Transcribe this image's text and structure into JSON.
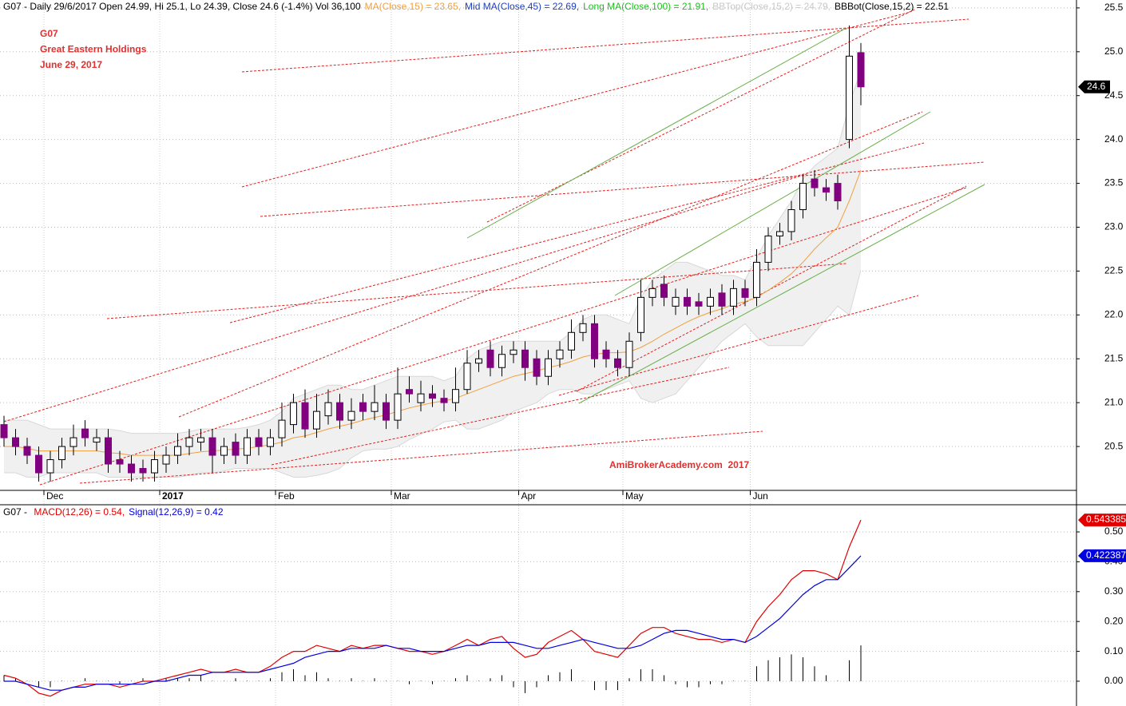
{
  "chart_data": [
    {
      "type": "candlestick",
      "header": [
        {
          "text": "G07 - Daily 29/6/2017 Open 24.99, Hi 25.1, Lo 24.39, Close 24.6 (-1.4%) Vol 36,100",
          "color": "#000000"
        },
        {
          "text": "MA(Close,15) = 23.65,",
          "color": "#f0a040"
        },
        {
          "text": "Mid MA(Close,45) = 22.69,",
          "color": "#2040c0"
        },
        {
          "text": "Long MA(Close,100) = 21.91,",
          "color": "#20c020"
        },
        {
          "text": "BBTop(Close,15,2) = 24.79,",
          "color": "#c8c8c8"
        },
        {
          "text": "BBBot(Close,15,2) = 22.51",
          "color": "#000000"
        }
      ],
      "annotation": [
        "G07",
        "Great Eastern Holdings",
        "June 29, 2017"
      ],
      "annotation_color": "#e03030",
      "watermark": "AmiBrokerAcademy.com  2017",
      "last_price_label": "24.6",
      "categories": [
        null,
        null,
        null,
        null,
        "Dec",
        null,
        null,
        null,
        null,
        null,
        null,
        null,
        null,
        null,
        "2017",
        null,
        null,
        null,
        null,
        null,
        null,
        null,
        null,
        null,
        "Feb",
        null,
        null,
        null,
        null,
        null,
        null,
        null,
        null,
        null,
        "Mar",
        null,
        null,
        null,
        null,
        null,
        null,
        null,
        null,
        null,
        null,
        "Apr",
        null,
        null,
        null,
        null,
        null,
        null,
        null,
        null,
        "May",
        null,
        null,
        null,
        null,
        null,
        null,
        null,
        null,
        null,
        null,
        "Jun",
        null,
        null,
        null,
        null,
        null,
        null,
        null,
        null,
        null
      ],
      "open": [
        20.75,
        20.6,
        20.5,
        20.4,
        20.2,
        20.35,
        20.5,
        20.7,
        20.55,
        20.6,
        20.35,
        20.3,
        20.25,
        20.2,
        20.3,
        20.4,
        20.5,
        20.55,
        20.6,
        20.4,
        20.55,
        20.4,
        20.6,
        20.5,
        20.6,
        20.75,
        21.0,
        20.7,
        20.85,
        21.0,
        20.8,
        21.0,
        20.9,
        21.0,
        20.8,
        21.15,
        21.0,
        21.1,
        21.05,
        21.0,
        21.15,
        21.45,
        21.6,
        21.4,
        21.55,
        21.6,
        21.5,
        21.3,
        21.5,
        21.6,
        21.8,
        21.9,
        21.6,
        21.5,
        21.4,
        21.8,
        22.2,
        22.35,
        22.1,
        22.2,
        22.15,
        22.1,
        22.25,
        22.1,
        22.3,
        22.2,
        22.6,
        22.9,
        22.95,
        23.2,
        23.55,
        23.45,
        23.5,
        24.0,
        24.99
      ],
      "high": [
        20.85,
        20.7,
        20.6,
        20.5,
        20.45,
        20.6,
        20.75,
        20.8,
        20.7,
        20.7,
        20.45,
        20.4,
        20.35,
        20.45,
        20.5,
        20.65,
        20.7,
        20.7,
        20.7,
        20.6,
        20.65,
        20.7,
        20.7,
        20.7,
        21.0,
        21.1,
        21.15,
        21.1,
        21.15,
        21.1,
        21.05,
        21.1,
        21.2,
        21.1,
        21.4,
        21.3,
        21.25,
        21.2,
        21.15,
        21.4,
        21.6,
        21.6,
        21.7,
        21.65,
        21.7,
        21.7,
        21.6,
        21.6,
        21.7,
        21.95,
        22.0,
        22.0,
        21.7,
        21.6,
        21.8,
        22.4,
        22.4,
        22.45,
        22.3,
        22.3,
        22.25,
        22.3,
        22.35,
        22.4,
        22.4,
        22.75,
        23.0,
        23.05,
        23.3,
        23.6,
        23.65,
        23.55,
        23.6,
        25.3,
        25.1
      ],
      "low": [
        20.5,
        20.4,
        20.3,
        20.1,
        20.1,
        20.25,
        20.4,
        20.5,
        20.45,
        20.2,
        20.2,
        20.1,
        20.1,
        20.1,
        20.2,
        20.3,
        20.4,
        20.45,
        20.2,
        20.3,
        20.3,
        20.3,
        20.4,
        20.4,
        20.5,
        20.65,
        20.6,
        20.6,
        20.75,
        20.7,
        20.7,
        20.8,
        20.8,
        20.7,
        20.7,
        21.0,
        20.9,
        20.95,
        20.9,
        20.9,
        21.1,
        21.35,
        21.3,
        21.3,
        21.45,
        21.25,
        21.2,
        21.2,
        21.4,
        21.5,
        21.7,
        21.4,
        21.4,
        21.3,
        21.3,
        21.7,
        22.1,
        22.1,
        22.0,
        22.0,
        22.0,
        22.0,
        22.0,
        22.0,
        22.1,
        22.1,
        22.5,
        22.8,
        22.85,
        23.1,
        23.35,
        23.3,
        23.2,
        23.9,
        24.39
      ],
      "close": [
        20.6,
        20.5,
        20.4,
        20.2,
        20.35,
        20.5,
        20.6,
        20.6,
        20.6,
        20.3,
        20.3,
        20.2,
        20.2,
        20.35,
        20.4,
        20.5,
        20.6,
        20.6,
        20.4,
        20.5,
        20.4,
        20.6,
        20.5,
        20.6,
        20.8,
        21.0,
        20.7,
        20.9,
        21.0,
        20.8,
        20.9,
        20.9,
        21.0,
        20.8,
        21.1,
        21.1,
        21.1,
        21.05,
        21.0,
        21.15,
        21.45,
        21.5,
        21.4,
        21.55,
        21.6,
        21.4,
        21.3,
        21.5,
        21.6,
        21.8,
        21.9,
        21.5,
        21.5,
        21.4,
        21.7,
        22.2,
        22.3,
        22.2,
        22.2,
        22.1,
        22.1,
        22.2,
        22.1,
        22.3,
        22.2,
        22.6,
        22.9,
        22.95,
        23.2,
        23.5,
        23.45,
        23.4,
        23.3,
        24.95,
        24.6
      ],
      "up_color": "#ffffff",
      "down_color": "#800080",
      "ma15": {
        "color": "#f0a040",
        "values": [
          20.5,
          20.5,
          20.48,
          20.45,
          20.45,
          20.45,
          20.45,
          20.45,
          20.45,
          20.43,
          20.42,
          20.4,
          20.4,
          20.4,
          20.4,
          20.4,
          20.42,
          20.44,
          20.45,
          20.46,
          20.47,
          20.48,
          20.5,
          20.52,
          20.55,
          20.6,
          20.62,
          20.66,
          20.7,
          20.73,
          20.76,
          20.8,
          20.83,
          20.86,
          20.9,
          20.94,
          20.97,
          21.0,
          21.02,
          21.05,
          21.1,
          21.15,
          21.2,
          21.25,
          21.3,
          21.33,
          21.36,
          21.4,
          21.43,
          21.47,
          21.52,
          21.55,
          21.57,
          21.57,
          21.58,
          21.63,
          21.7,
          21.78,
          21.85,
          21.92,
          21.98,
          22.03,
          22.07,
          22.12,
          22.15,
          22.2,
          22.28,
          22.37,
          22.47,
          22.6,
          22.75,
          22.88,
          23.0,
          23.3,
          23.65
        ]
      },
      "bb_top": {
        "color": "#d8d8d8",
        "values": [
          20.8,
          20.8,
          20.8,
          20.75,
          20.7,
          20.7,
          20.7,
          20.7,
          20.7,
          20.7,
          20.68,
          20.65,
          20.65,
          20.65,
          20.65,
          20.65,
          20.67,
          20.7,
          20.7,
          20.7,
          20.7,
          20.72,
          20.75,
          20.8,
          20.9,
          21.05,
          21.1,
          21.15,
          21.2,
          21.2,
          21.15,
          21.15,
          21.2,
          21.25,
          21.3,
          21.3,
          21.3,
          21.3,
          21.25,
          21.3,
          21.5,
          21.6,
          21.65,
          21.7,
          21.7,
          21.7,
          21.7,
          21.7,
          21.7,
          21.8,
          21.95,
          22.0,
          22.0,
          21.95,
          21.9,
          22.2,
          22.4,
          22.5,
          22.6,
          22.6,
          22.55,
          22.5,
          22.45,
          22.45,
          22.4,
          22.65,
          22.9,
          23.1,
          23.3,
          23.55,
          23.7,
          23.8,
          23.9,
          24.4,
          24.79
        ]
      },
      "bb_bottom": {
        "color": "#d8d8d8",
        "values": [
          20.2,
          20.2,
          20.15,
          20.15,
          20.2,
          20.2,
          20.2,
          20.2,
          20.2,
          20.15,
          20.15,
          20.15,
          20.15,
          20.15,
          20.15,
          20.15,
          20.17,
          20.2,
          20.2,
          20.22,
          20.25,
          20.25,
          20.25,
          20.25,
          20.2,
          20.15,
          20.15,
          20.17,
          20.2,
          20.25,
          20.37,
          20.45,
          20.47,
          20.47,
          20.5,
          20.58,
          20.64,
          20.7,
          20.78,
          20.8,
          20.7,
          20.7,
          20.75,
          20.8,
          20.9,
          20.95,
          21.0,
          21.1,
          21.15,
          21.15,
          21.1,
          21.1,
          21.15,
          21.2,
          21.25,
          21.05,
          21.0,
          21.05,
          21.1,
          21.25,
          21.4,
          21.55,
          21.7,
          21.8,
          21.9,
          21.75,
          21.65,
          21.65,
          21.65,
          21.65,
          21.8,
          21.95,
          22.1,
          22.0,
          22.51
        ]
      },
      "ylim": [
        20.0,
        25.59
      ],
      "yticks": [
        20.5,
        {
          "value": 21,
          "label": "21.0"
        },
        21.5,
        {
          "value": 22,
          "label": "22.0"
        },
        22.5,
        {
          "value": 23,
          "label": "23.0"
        },
        23.5,
        {
          "value": 24,
          "label": "24.0"
        },
        24.5,
        {
          "value": 25,
          "label": "25.0"
        },
        25.5
      ],
      "grid": true
    },
    {
      "type": "macd",
      "header": [
        {
          "text": "G07 - ",
          "color": "#000000"
        },
        {
          "text": "MACD(12,26) = 0.54,",
          "color": "#e00000"
        },
        {
          "text": "Signal(12,26,9) = 0.42",
          "color": "#0000e0"
        }
      ],
      "series": [
        {
          "name": "MACD",
          "color": "#e00000",
          "values": [
            0.02,
            0.01,
            -0.01,
            -0.04,
            -0.05,
            -0.03,
            -0.02,
            -0.01,
            -0.01,
            -0.01,
            -0.02,
            -0.01,
            0.0,
            0.0,
            0.01,
            0.02,
            0.03,
            0.04,
            0.03,
            0.03,
            0.04,
            0.03,
            0.03,
            0.05,
            0.08,
            0.1,
            0.1,
            0.12,
            0.11,
            0.1,
            0.12,
            0.11,
            0.12,
            0.12,
            0.11,
            0.1,
            0.1,
            0.09,
            0.1,
            0.12,
            0.14,
            0.12,
            0.14,
            0.15,
            0.11,
            0.08,
            0.09,
            0.13,
            0.15,
            0.17,
            0.14,
            0.1,
            0.09,
            0.08,
            0.12,
            0.16,
            0.18,
            0.18,
            0.16,
            0.15,
            0.14,
            0.14,
            0.13,
            0.14,
            0.13,
            0.2,
            0.25,
            0.29,
            0.34,
            0.37,
            0.37,
            0.36,
            0.34,
            0.45,
            0.54
          ],
          "value_label": "0.543385"
        },
        {
          "name": "Signal",
          "color": "#0000e0",
          "values": [
            0.0,
            0.0,
            -0.01,
            -0.02,
            -0.03,
            -0.03,
            -0.02,
            -0.02,
            -0.01,
            -0.01,
            -0.01,
            -0.01,
            -0.01,
            0.0,
            0.0,
            0.01,
            0.02,
            0.02,
            0.03,
            0.03,
            0.03,
            0.03,
            0.03,
            0.04,
            0.05,
            0.06,
            0.08,
            0.09,
            0.1,
            0.1,
            0.11,
            0.11,
            0.11,
            0.12,
            0.11,
            0.11,
            0.1,
            0.1,
            0.1,
            0.11,
            0.12,
            0.12,
            0.13,
            0.13,
            0.13,
            0.12,
            0.11,
            0.11,
            0.12,
            0.13,
            0.14,
            0.13,
            0.12,
            0.11,
            0.11,
            0.12,
            0.14,
            0.16,
            0.17,
            0.17,
            0.16,
            0.15,
            0.14,
            0.14,
            0.13,
            0.15,
            0.18,
            0.21,
            0.25,
            0.29,
            0.32,
            0.34,
            0.34,
            0.38,
            0.42
          ],
          "value_label": "0.422387"
        }
      ],
      "histogram": {
        "color": "#000000",
        "values": [
          0.02,
          0.01,
          0.0,
          -0.02,
          -0.02,
          0.0,
          0.0,
          0.01,
          0.0,
          0.0,
          -0.01,
          0.0,
          0.01,
          0.0,
          0.01,
          0.01,
          0.01,
          0.02,
          0.0,
          0.0,
          0.01,
          0.0,
          0.0,
          0.01,
          0.03,
          0.04,
          0.02,
          0.03,
          0.01,
          0.0,
          0.01,
          0.0,
          0.01,
          0.0,
          0.0,
          -0.01,
          0.0,
          -0.01,
          0.0,
          0.01,
          0.02,
          0.0,
          0.01,
          0.02,
          -0.02,
          -0.04,
          -0.02,
          0.02,
          0.03,
          0.04,
          0.0,
          -0.03,
          -0.03,
          -0.03,
          0.01,
          0.04,
          0.04,
          0.02,
          -0.01,
          -0.02,
          -0.02,
          -0.01,
          -0.01,
          0.0,
          0.0,
          0.05,
          0.07,
          0.08,
          0.09,
          0.08,
          0.05,
          0.02,
          0.0,
          0.07,
          0.12
        ]
      },
      "ylim": [
        -0.083,
        0.591
      ],
      "yticks": [
        {
          "value": 0,
          "label": "0.00"
        },
        {
          "value": 0.1,
          "label": "0.10"
        },
        {
          "value": 0.2,
          "label": "0.20"
        },
        {
          "value": 0.3,
          "label": "0.30"
        },
        {
          "value": 0.4,
          "label": "0.40"
        },
        {
          "value": 0.5,
          "label": "0.50"
        }
      ],
      "grid": true
    }
  ]
}
